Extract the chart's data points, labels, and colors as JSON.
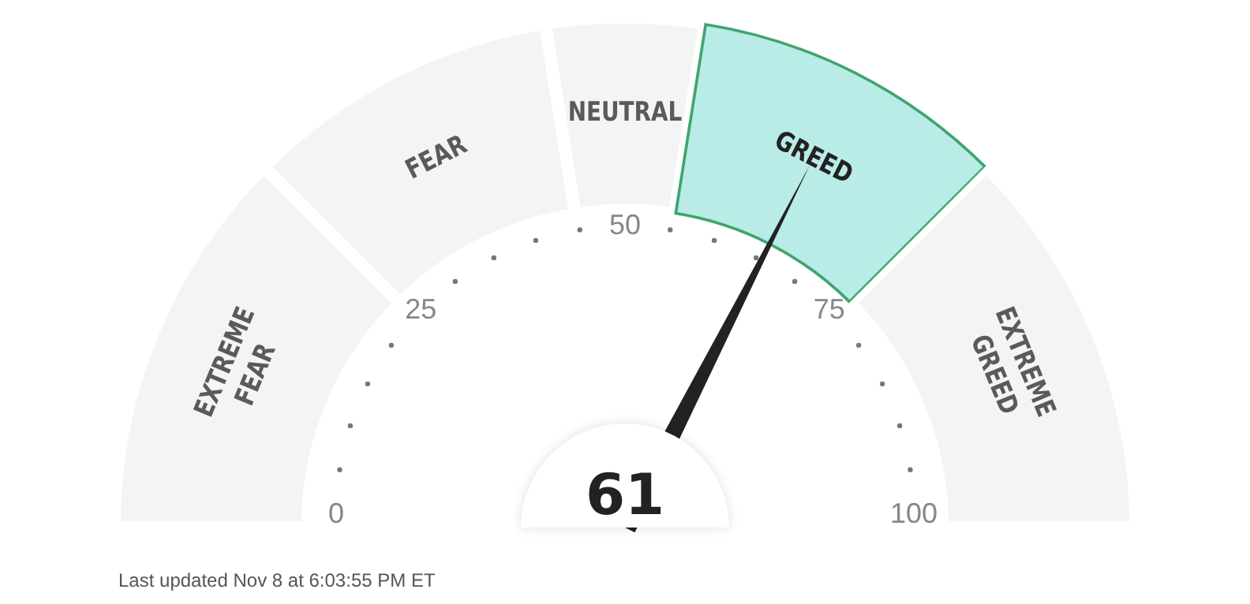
{
  "chart_data": {
    "type": "donut",
    "categories": [
      "EXTREME FEAR",
      "FEAR",
      "NEUTRAL",
      "GREED",
      "EXTREME GREED"
    ],
    "values": [
      25,
      20,
      10,
      20,
      25
    ],
    "colors": [
      "#f4f4f4",
      "#f4f4f4",
      "#f4f4f4",
      "#b9ece6",
      "#f4f4f4"
    ],
    "needle": "GREED",
    "annotations": [
      "0",
      "25",
      "50",
      "75",
      "100",
      "61",
      "Last updated Nov 8 at 6:03:55 PM ET"
    ]
  }
}
